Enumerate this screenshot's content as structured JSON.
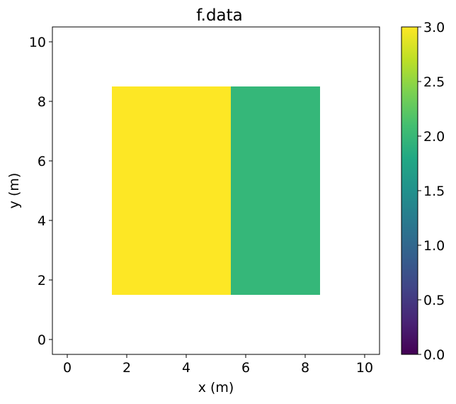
{
  "chart_data": {
    "type": "heatmap",
    "title": "f.data",
    "xlabel": "x (m)",
    "ylabel": "y (m)",
    "xlim": [
      -0.5,
      10.5
    ],
    "ylim": [
      -0.5,
      10.5
    ],
    "xticks": [
      "0",
      "2",
      "4",
      "6",
      "8",
      "10"
    ],
    "yticks": [
      "0",
      "2",
      "4",
      "6",
      "8",
      "10"
    ],
    "grid": false,
    "colormap": "viridis",
    "cells": [
      {
        "x0": 1.5,
        "x1": 5.5,
        "y0": 1.5,
        "y1": 8.5,
        "value": 3.0,
        "color": "#fde725"
      },
      {
        "x0": 5.5,
        "x1": 8.5,
        "y0": 1.5,
        "y1": 8.5,
        "value": 2.0,
        "color": "#35b779"
      }
    ],
    "colorbar": {
      "range": [
        0.0,
        3.0
      ],
      "ticks": [
        "0.0",
        "0.5",
        "1.0",
        "1.5",
        "2.0",
        "2.5",
        "3.0"
      ]
    }
  }
}
